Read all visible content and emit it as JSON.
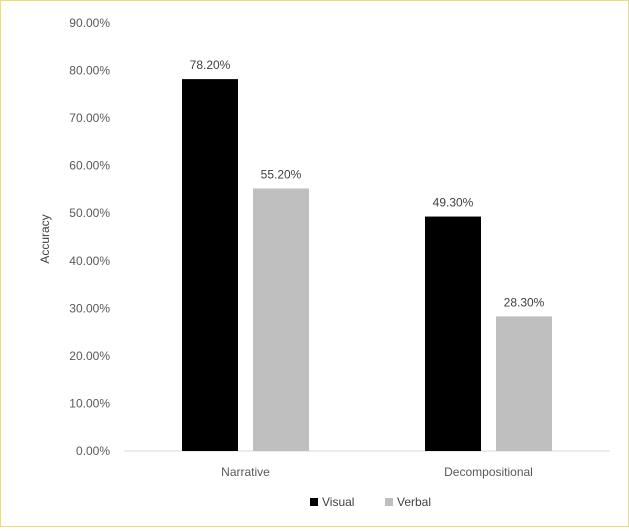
{
  "chart_data": {
    "type": "bar",
    "title": "",
    "xlabel": "",
    "ylabel": "Accuracy",
    "ylim": [
      0,
      90
    ],
    "ytick_step": 10,
    "ytick_format": "percent_2dp",
    "categories": [
      "Narrative",
      "Decompositional"
    ],
    "series": [
      {
        "name": "Visual",
        "values": [
          78.2,
          49.3
        ],
        "color": "#000000"
      },
      {
        "name": "Verbal",
        "values": [
          55.2,
          28.3
        ],
        "color": "#bfbfbf"
      }
    ],
    "data_labels": [
      [
        "78.20%",
        "49.30%"
      ],
      [
        "55.20%",
        "28.30%"
      ]
    ],
    "grid": false,
    "legend_position": "bottom-center"
  }
}
